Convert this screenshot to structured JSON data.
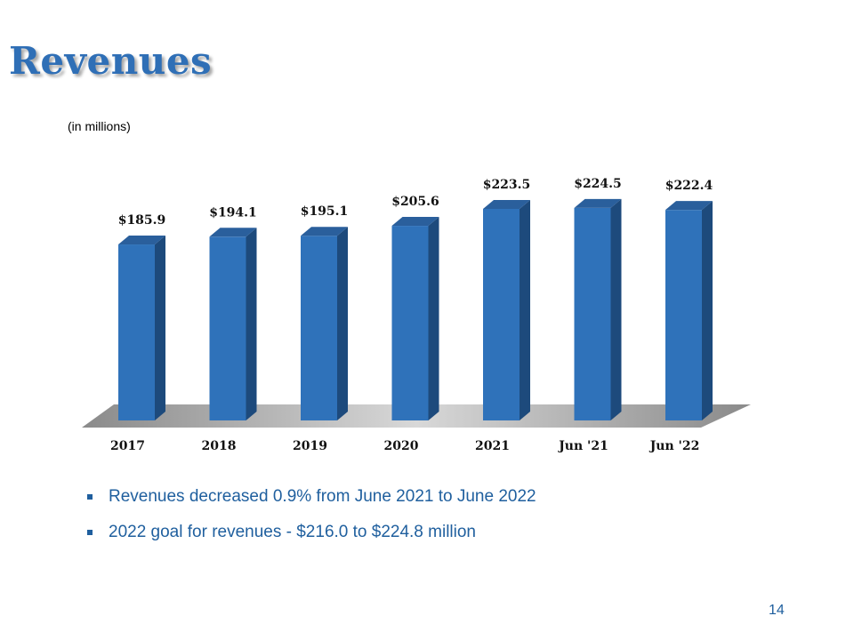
{
  "slide": {
    "title": "Revenues",
    "unit_note": "(in millions)",
    "page_number": "14"
  },
  "bullets": [
    "Revenues decreased 0.9% from June 2021 to June 2022",
    "2022 goal for revenues - $216.0 to $224.8 million"
  ],
  "colors": {
    "title": "#2f6fb6",
    "bar_front": "#2f72ba",
    "bar_side": "#1d4a7c",
    "bar_top": "#2a5f9c",
    "floor": "#b5b5b5",
    "bullet_text": "#1f5f9e"
  },
  "chart_data": {
    "type": "bar",
    "style": "3d",
    "categories": [
      "2017",
      "2018",
      "2019",
      "2020",
      "2021",
      "Jun '21",
      "Jun '22"
    ],
    "values": [
      185.9,
      194.1,
      195.1,
      205.6,
      223.5,
      224.5,
      222.4
    ],
    "data_labels": [
      "$185.9",
      "$194.1",
      "$195.1",
      "$205.6",
      "$223.5",
      "$224.5",
      "$222.4"
    ],
    "ylim": [
      0,
      230
    ],
    "grid": false,
    "legend": "none"
  }
}
